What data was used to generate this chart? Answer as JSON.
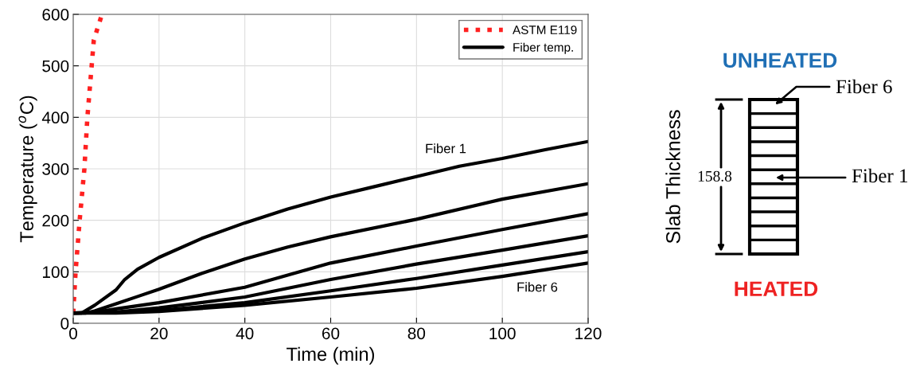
{
  "chart_data": {
    "type": "line",
    "xlabel": "Time (min)",
    "ylabel": "Temperature ($^{o}$C)",
    "xlim": [
      0,
      120
    ],
    "ylim": [
      0,
      600
    ],
    "xticks": [
      0,
      20,
      40,
      60,
      80,
      100,
      120
    ],
    "yticks": [
      0,
      100,
      200,
      300,
      400,
      500,
      600
    ],
    "grid": true,
    "legend": "top right",
    "marker": "none",
    "series": [
      {
        "name": "ASTM E119",
        "color": "#ff2020",
        "line_style": "dotted",
        "x": [
          0,
          0.55,
          1.5,
          2.6,
          3.3,
          4.3,
          4.8,
          6.7
        ],
        "values": [
          20,
          100,
          200,
          300,
          400,
          500,
          550,
          600
        ]
      },
      {
        "name": "Fiber temp.",
        "color": "#000000",
        "line_style": "solid",
        "x": [
          0,
          2,
          5,
          10,
          12,
          15,
          20,
          30,
          40,
          50,
          60,
          70,
          80,
          90,
          100,
          110,
          120
        ],
        "values": [
          20,
          20,
          35,
          65,
          85,
          105,
          128,
          165,
          195,
          222,
          245,
          265,
          285,
          305,
          320,
          337,
          353
        ]
      },
      {
        "color": "#000000",
        "line_style": "solid",
        "x": [
          0,
          3,
          5,
          10,
          15,
          20,
          30,
          40,
          50,
          60,
          80,
          100,
          120
        ],
        "values": [
          20,
          20,
          24,
          38,
          52,
          66,
          97,
          125,
          148,
          168,
          202,
          241,
          271
        ]
      },
      {
        "color": "#000000",
        "line_style": "solid",
        "x": [
          0,
          5,
          10,
          20,
          40,
          60,
          80,
          100,
          120
        ],
        "values": [
          20,
          21,
          28,
          40,
          70,
          117,
          150,
          182,
          213
        ]
      },
      {
        "color": "#000000",
        "line_style": "solid",
        "x": [
          0,
          10,
          20,
          40,
          60,
          80,
          100,
          120
        ],
        "values": [
          20,
          22,
          30,
          51,
          85,
          115,
          142,
          170
        ]
      },
      {
        "color": "#000000",
        "line_style": "solid",
        "x": [
          0,
          10,
          20,
          40,
          60,
          80,
          100,
          120
        ],
        "values": [
          20,
          21,
          25,
          40,
          63,
          87,
          113,
          139
        ]
      },
      {
        "color": "#000000",
        "line_style": "solid",
        "x": [
          0,
          10,
          20,
          40,
          60,
          80,
          100,
          120
        ],
        "values": [
          20,
          20,
          23,
          35,
          51,
          68,
          91,
          117
        ]
      }
    ],
    "annotations": [
      "Fiber 1",
      "Fiber 6",
      "UNHEATED",
      "Fiber 6",
      "Slab Thickness",
      "158.8",
      "Fiber 1",
      "HEATED"
    ]
  }
}
